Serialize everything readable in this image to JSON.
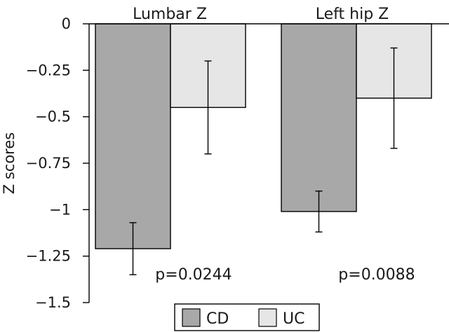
{
  "chart_data": {
    "type": "bar",
    "categories": [
      "Lumbar Z",
      "Left hip Z"
    ],
    "series": [
      {
        "name": "CD",
        "values": [
          -1.21,
          -1.01
        ],
        "error": [
          0.14,
          0.11
        ],
        "color": "#a8a8a8"
      },
      {
        "name": "UC",
        "values": [
          -0.45,
          -0.4
        ],
        "error": [
          0.25,
          0.27
        ],
        "color": "#e6e6e6"
      }
    ],
    "annotations": [
      "p=0.0244",
      "p=0.0088"
    ],
    "ylabel": "Z scores",
    "xlabel": "",
    "ylim": [
      -1.5,
      0
    ],
    "yticks": [
      0,
      -0.25,
      -0.5,
      -0.75,
      -1,
      -1.25,
      -1.5
    ],
    "ytick_labels": [
      "0",
      "−0.25",
      "−0.5",
      "−0.75",
      "−1",
      "−1.25",
      "−1.5"
    ],
    "legend": {
      "placement": "bottom-center",
      "entries": [
        "CD",
        "UC"
      ]
    },
    "grid": false
  }
}
